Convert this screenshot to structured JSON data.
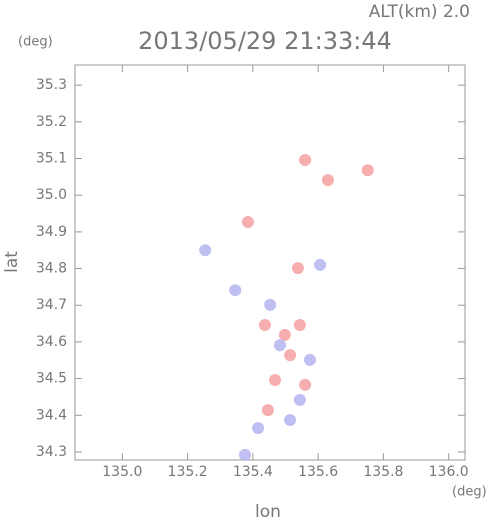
{
  "chart_data": {
    "type": "scatter",
    "title": "2013/05/29 21:33:44",
    "subtitle": "ALT(km) 2.0",
    "x_label": "lon",
    "y_label": "lat",
    "x_unit": "(deg)",
    "y_unit": "(deg)",
    "xlim": [
      134.855,
      136.05
    ],
    "ylim": [
      34.278,
      35.355
    ],
    "xticks": [
      {
        "value": 135,
        "label": "135.0"
      },
      135.2,
      135.4,
      135.6,
      135.8,
      {
        "value": 136,
        "label": "136.0"
      }
    ],
    "yticks": [
      34.3,
      34.4,
      34.5,
      34.6,
      34.7,
      34.8,
      34.9,
      {
        "value": 35,
        "label": "35.0"
      },
      35.1,
      35.2,
      35.3
    ],
    "series": [
      {
        "color": "#f4a0a0",
        "x": [
          135.56,
          135.63,
          135.752,
          135.385,
          135.538,
          135.437,
          135.544,
          135.514,
          135.468,
          135.56,
          135.446,
          135.498
        ],
        "values": [
          35.096,
          35.041,
          35.068,
          34.927,
          34.801,
          34.646,
          34.646,
          34.564,
          34.496,
          34.483,
          34.414,
          34.619
        ]
      },
      {
        "color": "#b4b4f0",
        "x": [
          135.254,
          135.346,
          135.453,
          135.483,
          135.575,
          135.544,
          135.416,
          135.376,
          135.606,
          135.514
        ],
        "values": [
          34.85,
          34.741,
          34.701,
          34.591,
          34.551,
          34.442,
          34.365,
          34.292,
          34.81,
          34.387
        ]
      }
    ]
  }
}
